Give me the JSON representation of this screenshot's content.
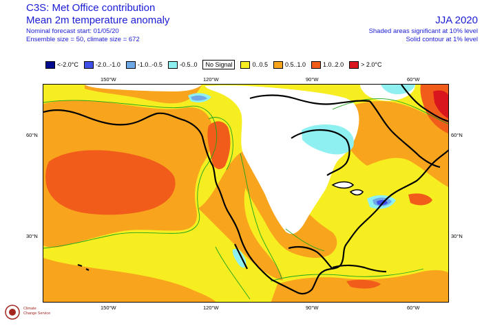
{
  "header": {
    "source": "C3S: Met Office contribution",
    "title": "Mean 2m temperature anomaly",
    "forecast_start": "Nominal forecast start: 01/05/20",
    "ensemble": "Ensemble size = 50, climate size = 672",
    "season": "JJA 2020",
    "note_shaded": "Shaded areas significant at 10% level",
    "note_contour": "Solid contour at 1% level"
  },
  "legend": [
    {
      "label": "<-2.0°C",
      "color": "#000a8c"
    },
    {
      "label": "-2.0..-1.0",
      "color": "#3f4fe8"
    },
    {
      "label": "-1.0..-0.5",
      "color": "#6fa8e6"
    },
    {
      "label": "-0.5..0",
      "color": "#8ff0f2"
    },
    {
      "label": "No Signal",
      "color": "#ffffff"
    },
    {
      "label": "0..0.5",
      "color": "#f7ee22"
    },
    {
      "label": "0.5..1.0",
      "color": "#f8a51d"
    },
    {
      "label": "1.0..2.0",
      "color": "#f25c1a"
    },
    {
      "label": "> 2.0°C",
      "color": "#d9161d"
    }
  ],
  "axes": {
    "top_lon": [
      "150°W",
      "120°W",
      "90°W",
      "60°W"
    ],
    "bottom_lon": [
      "150°W",
      "120°W",
      "90°W",
      "60°W"
    ],
    "left_lat": [
      "60°N",
      "30°N"
    ],
    "right_lat": [
      "60°N",
      "30°N"
    ]
  },
  "logo": {
    "line1": "Climate",
    "line2": "Change Service"
  }
}
